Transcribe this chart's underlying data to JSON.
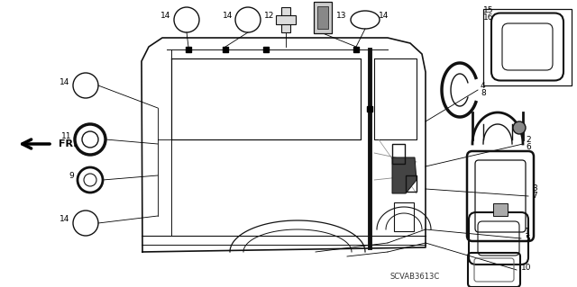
{
  "bg_color": "#ffffff",
  "diagram_code": "SCVAB3613C",
  "car_color": "#111111",
  "gray": "#666666",
  "lgray": "#bbbbbb"
}
